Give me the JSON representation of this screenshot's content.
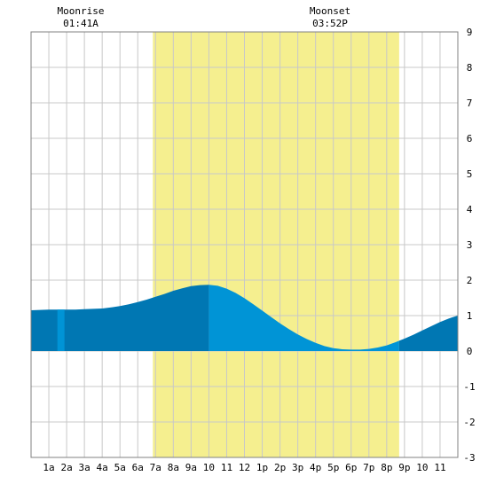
{
  "header": {
    "moonrise_label": "Moonrise",
    "moonrise_time": "01:41A",
    "moonset_label": "Moonset",
    "moonset_time": "03:52P"
  },
  "colors": {
    "daylight": "#f5ef8f",
    "tide_night": "#0077b3",
    "tide_day": "#0094d6",
    "grid": "#c8c8c8",
    "frame": "#808080"
  },
  "chart_data": {
    "type": "area",
    "title": "",
    "xlabel": "",
    "ylabel": "",
    "x_ticks": [
      "1a",
      "2a",
      "3a",
      "4a",
      "5a",
      "6a",
      "7a",
      "8a",
      "9a",
      "10",
      "11",
      "12",
      "1p",
      "2p",
      "3p",
      "4p",
      "5p",
      "6p",
      "7p",
      "8p",
      "9p",
      "10",
      "11"
    ],
    "xlim": [
      0,
      24
    ],
    "ylim": [
      -3,
      9
    ],
    "y_ticks": [
      -3,
      -2,
      -1,
      0,
      1,
      2,
      3,
      4,
      5,
      6,
      7,
      8,
      9
    ],
    "grid": true,
    "daylight_hours": [
      6.85,
      20.7
    ],
    "moonrise_hour": 1.68,
    "moonset_hour": 15.87,
    "tide_day_start": 10.0,
    "series": [
      {
        "x": [
          0,
          0.5,
          1,
          1.5,
          2,
          2.5,
          3,
          3.5,
          4,
          4.5,
          5,
          5.5,
          6,
          6.5,
          7,
          7.5,
          8,
          8.5,
          9,
          9.5,
          10,
          10.5,
          11,
          11.5,
          12,
          12.5,
          13,
          13.5,
          14,
          14.5,
          15,
          15.5,
          16,
          16.5,
          17,
          17.5,
          18,
          18.5,
          19,
          19.5,
          20,
          20.5,
          21,
          21.5,
          22,
          22.5,
          23,
          23.5,
          24
        ],
        "values": [
          1.15,
          1.16,
          1.17,
          1.17,
          1.17,
          1.17,
          1.18,
          1.19,
          1.2,
          1.23,
          1.27,
          1.32,
          1.38,
          1.45,
          1.53,
          1.61,
          1.7,
          1.77,
          1.83,
          1.86,
          1.87,
          1.84,
          1.76,
          1.64,
          1.49,
          1.32,
          1.14,
          0.96,
          0.78,
          0.62,
          0.47,
          0.34,
          0.23,
          0.14,
          0.08,
          0.05,
          0.04,
          0.04,
          0.06,
          0.1,
          0.16,
          0.25,
          0.35,
          0.46,
          0.58,
          0.7,
          0.82,
          0.92,
          1.0
        ]
      }
    ]
  }
}
